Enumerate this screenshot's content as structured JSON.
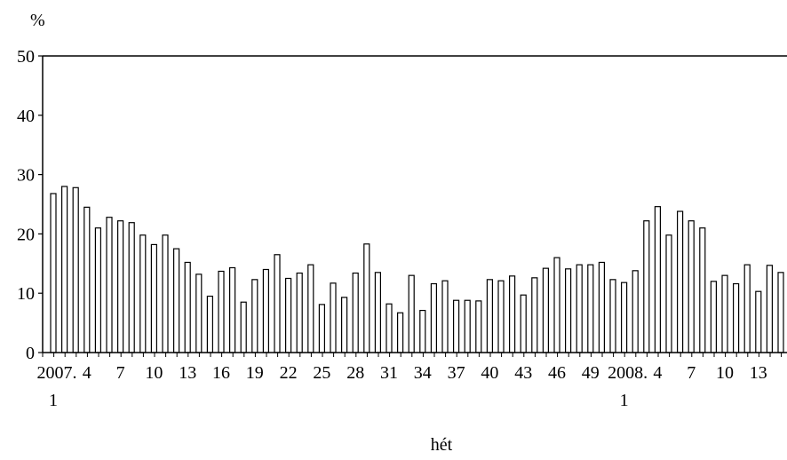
{
  "chart_data": {
    "type": "bar",
    "ylabel": "%",
    "xlabel": "hét",
    "ylim": [
      0,
      50
    ],
    "yticks": [
      0,
      10,
      20,
      30,
      40,
      50
    ],
    "grid": false,
    "legend": "none",
    "bar_fill": "#ffffff",
    "bar_stroke": "#000000",
    "x_ticks": [
      {
        "i": 0,
        "line1": "2007. 1"
      },
      {
        "i": 3,
        "line1": "4"
      },
      {
        "i": 6,
        "line1": "7"
      },
      {
        "i": 9,
        "line1": "10"
      },
      {
        "i": 12,
        "line1": "13"
      },
      {
        "i": 15,
        "line1": "16"
      },
      {
        "i": 18,
        "line1": "19"
      },
      {
        "i": 21,
        "line1": "22"
      },
      {
        "i": 24,
        "line1": "25"
      },
      {
        "i": 27,
        "line1": "28"
      },
      {
        "i": 30,
        "line1": "31"
      },
      {
        "i": 33,
        "line1": "34"
      },
      {
        "i": 36,
        "line1": "37"
      },
      {
        "i": 39,
        "line1": "40"
      },
      {
        "i": 42,
        "line1": "43"
      },
      {
        "i": 45,
        "line1": "46"
      },
      {
        "i": 48,
        "line1": "49"
      },
      {
        "i": 51,
        "line1": "2008. 1"
      },
      {
        "i": 54,
        "line1": "4"
      },
      {
        "i": 57,
        "line1": "7"
      },
      {
        "i": 60,
        "line1": "10"
      },
      {
        "i": 63,
        "line1": "13"
      }
    ],
    "values": [
      26.8,
      28.0,
      27.8,
      24.5,
      21.0,
      22.8,
      22.2,
      21.9,
      19.8,
      18.2,
      19.8,
      17.5,
      15.2,
      13.2,
      9.5,
      13.7,
      14.3,
      8.5,
      12.3,
      14.0,
      16.5,
      12.5,
      13.4,
      14.8,
      8.1,
      11.7,
      9.3,
      13.4,
      18.3,
      13.5,
      8.2,
      6.7,
      13.0,
      7.1,
      11.6,
      12.1,
      8.8,
      8.8,
      8.7,
      12.3,
      12.1,
      12.9,
      9.7,
      12.6,
      14.2,
      16.0,
      14.1,
      14.8,
      14.8,
      15.2,
      12.3,
      11.8,
      13.8,
      22.2,
      24.6,
      19.8,
      23.8,
      22.2,
      21.0,
      12.0,
      13.0,
      11.6,
      14.8,
      10.3,
      14.7,
      13.5
    ]
  }
}
